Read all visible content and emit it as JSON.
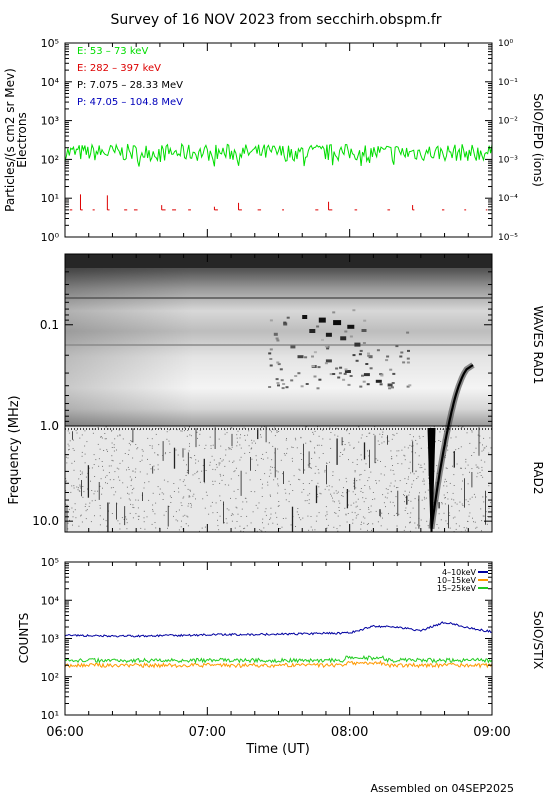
{
  "title": "Survey of 16 NOV 2023 from secchirh.obspm.fr",
  "footer": "Assembled on 04SEP2025",
  "colors": {
    "green": "#00dd00",
    "red": "#dd0000",
    "black": "#000000",
    "blue": "#0000bb",
    "navy": "#0000a0",
    "orange": "#ff9900",
    "lime": "#22cc22"
  },
  "chart_data": [
    {
      "type": "line",
      "ylabel": "Particles/(s cm2 sr Mev)",
      "ylabel2": "Electrons",
      "right_label": "SolO/EPD (ions)",
      "yscale": "log",
      "ylim": [
        1,
        100000
      ],
      "y_ticks": [
        "10⁰",
        "10¹",
        "10²",
        "10³",
        "10⁴",
        "10⁵"
      ],
      "y2_ticks": [
        "10⁻⁵",
        "10⁻⁴",
        "10⁻³",
        "10⁻²",
        "10⁻¹",
        "10⁰"
      ],
      "xlim": [
        "06:00",
        "09:00"
      ],
      "legend": [
        {
          "name": "E: 53 – 73 keV",
          "color": "#00dd00"
        },
        {
          "name": "E: 282 – 397 keV",
          "color": "#dd0000"
        },
        {
          "name": "P: 7.075 – 28.33 MeV",
          "color": "#000000"
        },
        {
          "name": "P: 47.05 – 104.8 MeV",
          "color": "#0000bb"
        }
      ],
      "series": [
        {
          "name": "E: 53 – 73 keV",
          "level": 150,
          "low": 90,
          "high": 250
        },
        {
          "name": "E: 282 – 397 keV",
          "level": 5,
          "spike_high": 14
        }
      ]
    },
    {
      "type": "heatmap",
      "ylabel": "Frequency (MHz)",
      "yscale": "log",
      "ylim": [
        0.02,
        13.0
      ],
      "y_ticks": [
        0.1,
        1.0,
        10.0
      ],
      "y_tick_labels": [
        "0.1",
        "1.0",
        "10.0"
      ],
      "right_labels": [
        "WAVES RAD1",
        "RAD2"
      ],
      "xlim": [
        "06:00",
        "09:00"
      ],
      "band_split_mhz": 1.0
    },
    {
      "type": "line",
      "ylabel": "COUNTS",
      "right_label": "SolO/STIX",
      "xlabel": "Time (UT)",
      "yscale": "log",
      "ylim": [
        10,
        100000
      ],
      "y_ticks": [
        "10¹",
        "10²",
        "10³",
        "10⁴",
        "10⁵"
      ],
      "x_ticks": [
        "06:00",
        "07:00",
        "08:00",
        "09:00"
      ],
      "legend": [
        {
          "name": "4–10keV",
          "color": "#0000a0"
        },
        {
          "name": "10–15keV",
          "color": "#ff9900"
        },
        {
          "name": "15–25keV",
          "color": "#22cc22"
        }
      ],
      "series": [
        {
          "name": "4–10keV",
          "t_min": [
            0,
            30,
            60,
            90,
            120,
            130,
            140,
            150,
            160,
            170,
            180
          ],
          "values": [
            1200,
            1150,
            1250,
            1300,
            1400,
            2100,
            2000,
            1600,
            2700,
            1900,
            1500
          ]
        },
        {
          "name": "10–15keV",
          "level": 200
        },
        {
          "name": "15–25keV",
          "level": 270
        }
      ]
    }
  ]
}
